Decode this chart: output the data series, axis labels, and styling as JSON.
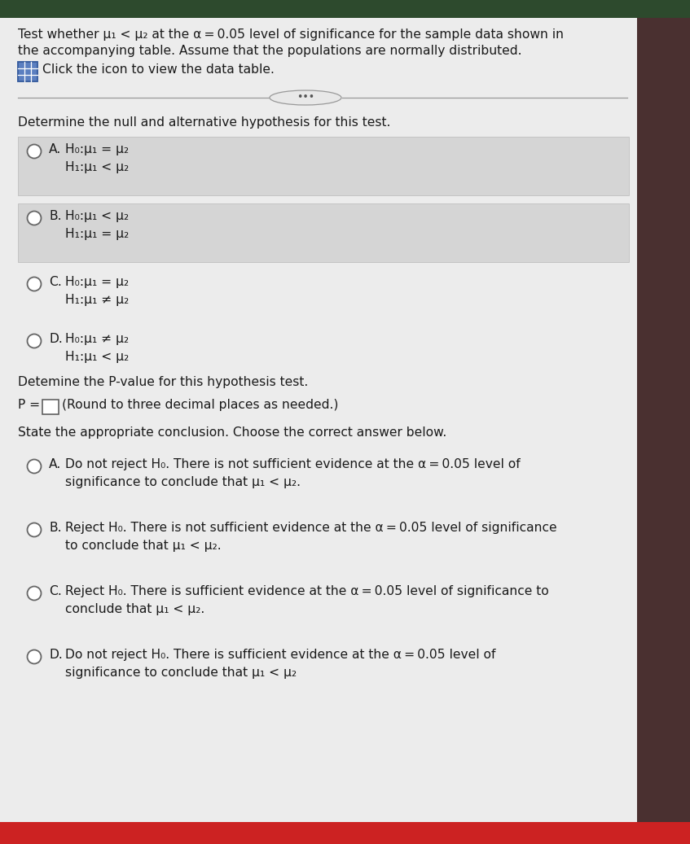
{
  "bg_outer": "#3a3a3a",
  "bg_top": "#2d4a2d",
  "bg_right": "#3a3535",
  "panel_color": "#e8e8e8",
  "optAB_color": "#d5d5d5",
  "text_color": "#1a1a1a",
  "bottom_red": "#cc2222",
  "title_line1": "Test whether μ₁ < μ₂ at the α = 0.05 level of significance for the sample data shown in",
  "title_line2": "the accompanying table. Assume that the populations are normally distributed.",
  "click_text": "Click the icon to view the data table.",
  "section1": "Determine the null and alternative hypothesis for this test.",
  "optA_label": "A.",
  "optA_l1": "H₀:μ₁ = μ₂",
  "optA_l2": "H₁:μ₁ < μ₂",
  "optB_label": "B.",
  "optB_l1": "H₀:μ₁ < μ₂",
  "optB_l2": "H₁:μ₁ = μ₂",
  "optC_label": "C.",
  "optC_l1": "H₀:μ₁ = μ₂",
  "optC_l2": "H₁:μ₁ ≠ μ₂",
  "optD_label": "D.",
  "optD_l1": "H₀:μ₁ ≠ μ₂",
  "optD_l2": "H₁:μ₁ < μ₂",
  "section2": "Detemine the P-value for this hypothesis test.",
  "pval_line": "(Round to three decimal places as needed.)",
  "section3": "State the appropriate conclusion. Choose the correct answer below.",
  "concA_label": "A.",
  "concA_l1": "Do not reject H₀. There is not sufficient evidence at the α = 0.05 level of",
  "concA_l2": "significance to conclude that μ₁ < μ₂.",
  "concB_label": "B.",
  "concB_l1": "Reject H₀. There is not sufficient evidence at the α = 0.05 level of significance",
  "concB_l2": "to conclude that μ₁ < μ₂.",
  "concC_label": "C.",
  "concC_l1": "Reject H₀. There is sufficient evidence at the α = 0.05 level of significance to",
  "concC_l2": "conclude that μ₁ < μ₂.",
  "concD_label": "D.",
  "concD_l1": "Do not reject H₀. There is sufficient evidence at the α = 0.05 level of",
  "concD_l2": "significance to conclude that μ₁ < μ₂"
}
